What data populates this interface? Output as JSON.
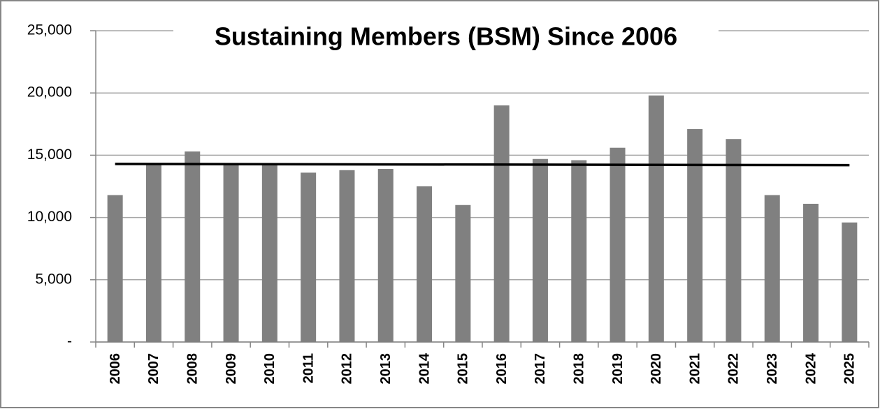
{
  "chart_data": {
    "type": "bar",
    "title": "Sustaining Members (BSM) Since 2006",
    "categories": [
      "2006",
      "2007",
      "2008",
      "2009",
      "2010",
      "2011",
      "2012",
      "2013",
      "2014",
      "2015",
      "2016",
      "2017",
      "2018",
      "2019",
      "2020",
      "2021",
      "2022",
      "2023",
      "2024",
      "2025"
    ],
    "values": [
      11800,
      14300,
      15300,
      14300,
      14300,
      13600,
      13800,
      13900,
      12500,
      11000,
      19000,
      14700,
      14600,
      15600,
      19800,
      17100,
      16300,
      11800,
      11100,
      9600
    ],
    "color": "#808080",
    "trend_line": {
      "start": 14300,
      "end": 14200,
      "color": "#000000"
    },
    "ylim": [
      0,
      25000
    ],
    "yticks": [
      {
        "value": 0,
        "label": "-"
      },
      {
        "value": 5000,
        "label": "5,000"
      },
      {
        "value": 10000,
        "label": "10,000"
      },
      {
        "value": 15000,
        "label": "15,000"
      },
      {
        "value": 20000,
        "label": "20,000"
      },
      {
        "value": 25000,
        "label": "25,000"
      }
    ],
    "grid": true
  }
}
